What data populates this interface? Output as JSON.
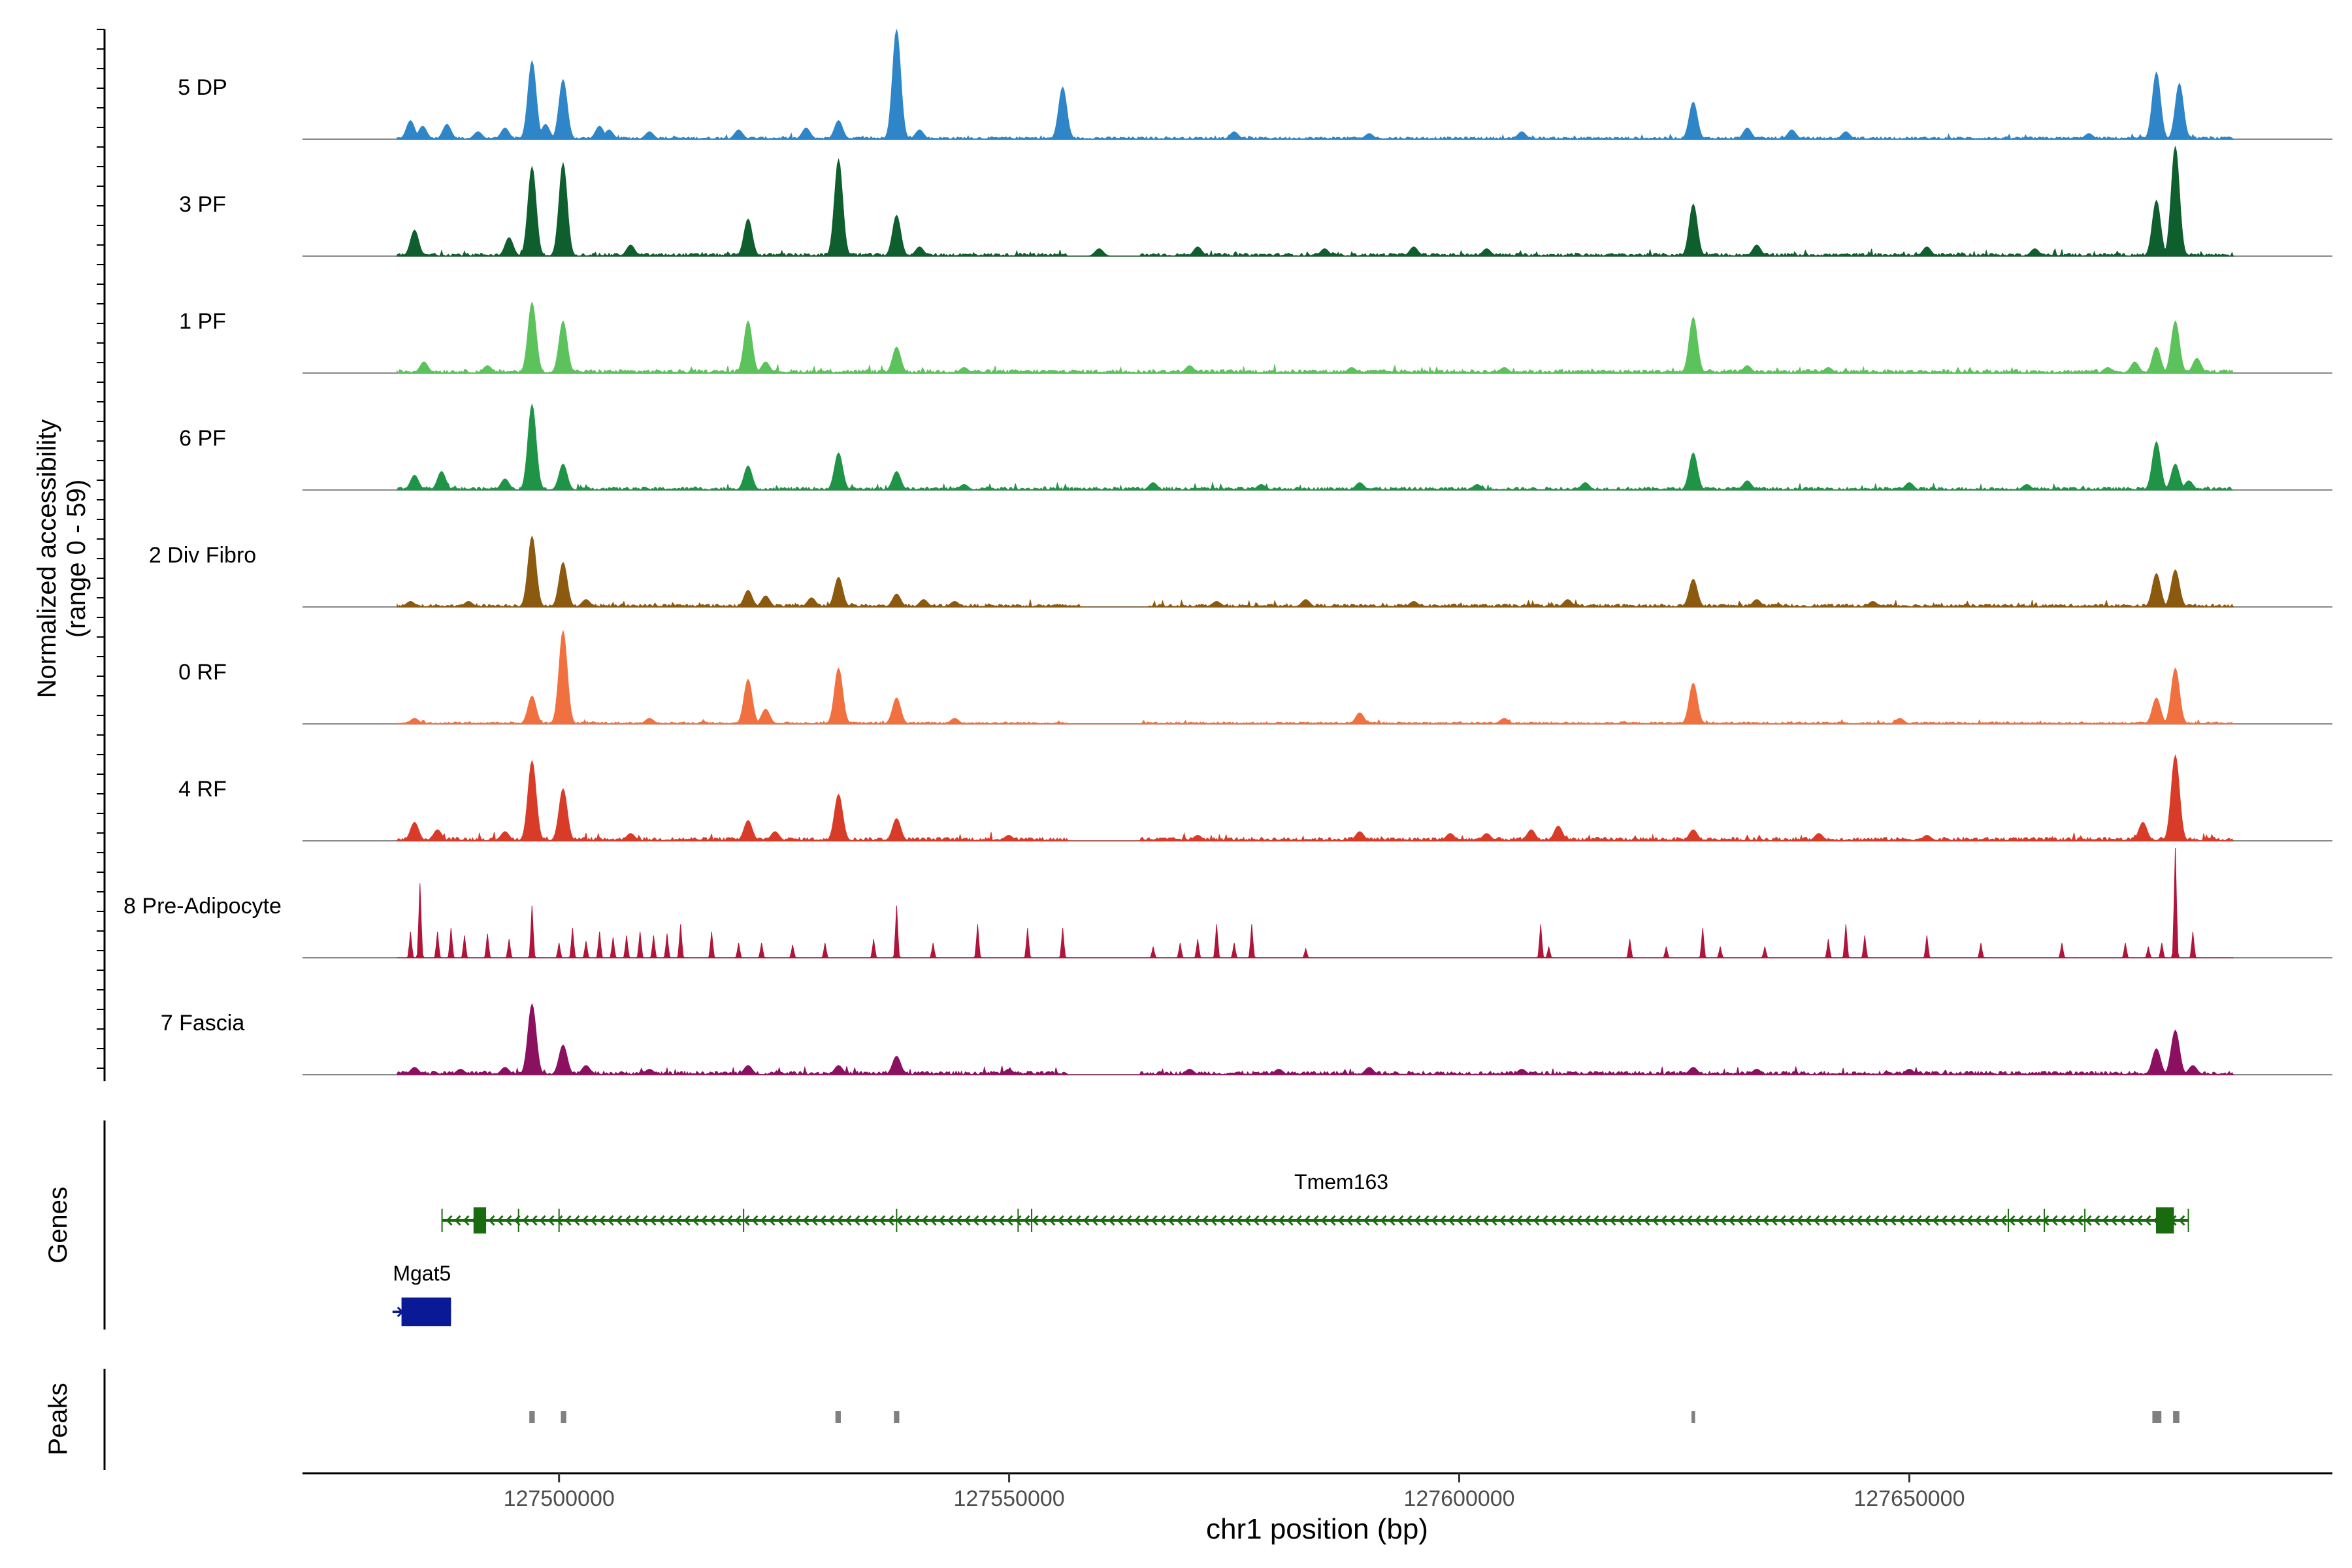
{
  "chart_data": {
    "type": "area",
    "title": "",
    "ylabel_line1": "Normalized accessibility",
    "ylabel_line2": "(range 0 - 59)",
    "y_range": [
      0,
      59
    ],
    "xlabel": "chr1 position (bp)",
    "xlim": [
      127471500,
      127697000
    ],
    "x_ticks": [
      127500000,
      127550000,
      127600000,
      127650000
    ],
    "x_tick_labels": [
      "127500000",
      "127550000",
      "127600000",
      "127650000"
    ],
    "track_start": 127482000,
    "track_end": 127686000,
    "genes_label": "Genes",
    "peaks_label": "Peaks",
    "tracks": [
      {
        "name": "5 DP",
        "color": "#2E86C8",
        "baseline": 0.8,
        "gaps": [],
        "peaks": [
          [
            127483500,
            10
          ],
          [
            127484800,
            7
          ],
          [
            127487500,
            8
          ],
          [
            127491000,
            4
          ],
          [
            127494000,
            6
          ],
          [
            127497000,
            42
          ],
          [
            127498500,
            8
          ],
          [
            127500500,
            32
          ],
          [
            127504500,
            7
          ],
          [
            127505500,
            5
          ],
          [
            127510000,
            4
          ],
          [
            127520000,
            5
          ],
          [
            127527500,
            6
          ],
          [
            127531000,
            10
          ],
          [
            127537500,
            59
          ],
          [
            127540000,
            5
          ],
          [
            127556000,
            28
          ],
          [
            127575000,
            4
          ],
          [
            127590000,
            3
          ],
          [
            127607000,
            4
          ],
          [
            127626000,
            20
          ],
          [
            127632000,
            6
          ],
          [
            127637000,
            5
          ],
          [
            127643000,
            4
          ],
          [
            127670000,
            3
          ],
          [
            127677500,
            36
          ],
          [
            127680000,
            30
          ]
        ]
      },
      {
        "name": "3 PF",
        "color": "#0F5E2E",
        "baseline": 1.0,
        "gaps": [
          [
            127556500,
            127564500
          ]
        ],
        "peaks": [
          [
            127484000,
            14
          ],
          [
            127494500,
            10
          ],
          [
            127497000,
            48
          ],
          [
            127500500,
            50
          ],
          [
            127508000,
            6
          ],
          [
            127521000,
            20
          ],
          [
            127531000,
            52
          ],
          [
            127537500,
            22
          ],
          [
            127540000,
            5
          ],
          [
            127560000,
            4
          ],
          [
            127571000,
            5
          ],
          [
            127585000,
            4
          ],
          [
            127595000,
            5
          ],
          [
            127603000,
            4
          ],
          [
            127626000,
            28
          ],
          [
            127633000,
            6
          ],
          [
            127652000,
            5
          ],
          [
            127664000,
            4
          ],
          [
            127677500,
            30
          ],
          [
            127679500,
            59
          ]
        ]
      },
      {
        "name": "1 PF",
        "color": "#5CC25C",
        "baseline": 1.2,
        "gaps": [],
        "peaks": [
          [
            127485000,
            6
          ],
          [
            127492000,
            4
          ],
          [
            127497000,
            38
          ],
          [
            127500500,
            28
          ],
          [
            127521000,
            28
          ],
          [
            127523000,
            6
          ],
          [
            127537500,
            14
          ],
          [
            127545000,
            3
          ],
          [
            127570000,
            4
          ],
          [
            127588000,
            3
          ],
          [
            127605000,
            3
          ],
          [
            127626000,
            30
          ],
          [
            127632000,
            4
          ],
          [
            127641000,
            3
          ],
          [
            127672000,
            3
          ],
          [
            127675000,
            6
          ],
          [
            127677500,
            14
          ],
          [
            127679500,
            28
          ],
          [
            127682000,
            8
          ]
        ]
      },
      {
        "name": "6 PF",
        "color": "#1F9447",
        "baseline": 1.0,
        "gaps": [],
        "peaks": [
          [
            127484000,
            8
          ],
          [
            127487000,
            10
          ],
          [
            127494000,
            6
          ],
          [
            127497000,
            46
          ],
          [
            127500500,
            14
          ],
          [
            127521000,
            13
          ],
          [
            127531000,
            20
          ],
          [
            127537500,
            10
          ],
          [
            127545000,
            3
          ],
          [
            127566000,
            4
          ],
          [
            127578000,
            3
          ],
          [
            127589000,
            4
          ],
          [
            127602000,
            3
          ],
          [
            127614000,
            4
          ],
          [
            127626000,
            20
          ],
          [
            127632000,
            5
          ],
          [
            127650000,
            4
          ],
          [
            127663000,
            3
          ],
          [
            127677500,
            26
          ],
          [
            127679500,
            14
          ],
          [
            127681000,
            5
          ]
        ]
      },
      {
        "name": "2 Div Fibro",
        "color": "#8B5A0E",
        "baseline": 1.0,
        "gaps": [
          [
            127558000,
            127565500
          ]
        ],
        "peaks": [
          [
            127483500,
            3
          ],
          [
            127490000,
            3
          ],
          [
            127497000,
            38
          ],
          [
            127500500,
            24
          ],
          [
            127503000,
            4
          ],
          [
            127521000,
            9
          ],
          [
            127523000,
            6
          ],
          [
            127528000,
            5
          ],
          [
            127531000,
            16
          ],
          [
            127537500,
            7
          ],
          [
            127540500,
            4
          ],
          [
            127544000,
            3
          ],
          [
            127573000,
            3
          ],
          [
            127583000,
            4
          ],
          [
            127595000,
            3
          ],
          [
            127612000,
            4
          ],
          [
            127626000,
            15
          ],
          [
            127633000,
            4
          ],
          [
            127646000,
            3
          ],
          [
            127677500,
            18
          ],
          [
            127679500,
            20
          ]
        ]
      },
      {
        "name": "0 RF",
        "color": "#F07040",
        "baseline": 0.7,
        "gaps": [
          [
            127556500,
            127564500
          ]
        ],
        "peaks": [
          [
            127484000,
            3
          ],
          [
            127497000,
            15
          ],
          [
            127500500,
            50
          ],
          [
            127510000,
            3
          ],
          [
            127521000,
            24
          ],
          [
            127523000,
            8
          ],
          [
            127531000,
            30
          ],
          [
            127537500,
            14
          ],
          [
            127544000,
            3
          ],
          [
            127589000,
            6
          ],
          [
            127605000,
            3
          ],
          [
            127626000,
            22
          ],
          [
            127649000,
            3
          ],
          [
            127677500,
            14
          ],
          [
            127679500,
            30
          ]
        ]
      },
      {
        "name": "4 RF",
        "color": "#D83C28",
        "baseline": 1.2,
        "gaps": [
          [
            127556500,
            127564500
          ]
        ],
        "peaks": [
          [
            127484000,
            10
          ],
          [
            127486500,
            6
          ],
          [
            127494000,
            5
          ],
          [
            127497000,
            43
          ],
          [
            127500500,
            28
          ],
          [
            127508000,
            4
          ],
          [
            127521000,
            11
          ],
          [
            127524000,
            5
          ],
          [
            127531000,
            25
          ],
          [
            127537500,
            12
          ],
          [
            127550000,
            3
          ],
          [
            127571000,
            3
          ],
          [
            127589000,
            5
          ],
          [
            127599000,
            4
          ],
          [
            127603000,
            4
          ],
          [
            127608000,
            6
          ],
          [
            127611000,
            8
          ],
          [
            127626000,
            6
          ],
          [
            127640000,
            4
          ],
          [
            127652000,
            3
          ],
          [
            127676000,
            10
          ],
          [
            127679500,
            46
          ]
        ]
      },
      {
        "name": "8 Pre-Adipocyte",
        "color": "#B0143A",
        "baseline": 0,
        "gaps": [],
        "peaks": [
          [
            127483500,
            14
          ],
          [
            127484500,
            40
          ],
          [
            127486500,
            14
          ],
          [
            127488000,
            16
          ],
          [
            127489500,
            12
          ],
          [
            127492000,
            13
          ],
          [
            127494500,
            10
          ],
          [
            127497000,
            28
          ],
          [
            127500000,
            8
          ],
          [
            127501500,
            16
          ],
          [
            127503000,
            9
          ],
          [
            127504500,
            14
          ],
          [
            127506000,
            11
          ],
          [
            127507500,
            12
          ],
          [
            127509000,
            14
          ],
          [
            127510500,
            12
          ],
          [
            127512000,
            13
          ],
          [
            127513500,
            18
          ],
          [
            127517000,
            14
          ],
          [
            127520000,
            8
          ],
          [
            127522500,
            8
          ],
          [
            127526000,
            7
          ],
          [
            127529500,
            8
          ],
          [
            127535000,
            10
          ],
          [
            127537500,
            28
          ],
          [
            127541500,
            8
          ],
          [
            127546500,
            18
          ],
          [
            127552000,
            16
          ],
          [
            127556000,
            16
          ],
          [
            127566000,
            6
          ],
          [
            127569000,
            8
          ],
          [
            127571000,
            10
          ],
          [
            127573000,
            18
          ],
          [
            127575000,
            8
          ],
          [
            127577000,
            18
          ],
          [
            127583000,
            5
          ],
          [
            127609000,
            18
          ],
          [
            127610000,
            6
          ],
          [
            127619000,
            10
          ],
          [
            127623000,
            6
          ],
          [
            127627000,
            16
          ],
          [
            127629000,
            6
          ],
          [
            127634000,
            6
          ],
          [
            127641000,
            10
          ],
          [
            127643000,
            18
          ],
          [
            127645000,
            12
          ],
          [
            127652000,
            12
          ],
          [
            127658000,
            8
          ],
          [
            127667000,
            8
          ],
          [
            127674000,
            8
          ],
          [
            127676500,
            6
          ],
          [
            127678000,
            8
          ],
          [
            127679500,
            59
          ],
          [
            127681500,
            14
          ]
        ]
      },
      {
        "name": "7 Fascia",
        "color": "#8B1060",
        "baseline": 1.2,
        "gaps": [
          [
            127556500,
            127564500
          ]
        ],
        "peaks": [
          [
            127484000,
            4
          ],
          [
            127489000,
            3
          ],
          [
            127494000,
            4
          ],
          [
            127497000,
            38
          ],
          [
            127500500,
            16
          ],
          [
            127503000,
            5
          ],
          [
            127510000,
            3
          ],
          [
            127521000,
            5
          ],
          [
            127531000,
            5
          ],
          [
            127537500,
            10
          ],
          [
            127550000,
            3
          ],
          [
            127570000,
            3
          ],
          [
            127580000,
            3
          ],
          [
            127590000,
            4
          ],
          [
            127607000,
            3
          ],
          [
            127626000,
            4
          ],
          [
            127633000,
            3
          ],
          [
            127650000,
            3
          ],
          [
            127677500,
            14
          ],
          [
            127679500,
            24
          ],
          [
            127681500,
            5
          ]
        ]
      }
    ],
    "genes": [
      {
        "name": "Tmem163",
        "strand": "-",
        "color": "#1A6B0F",
        "start": 127487000,
        "end": 127681000,
        "exons": [
          [
            127490500,
            127491900
          ],
          [
            127677400,
            127679400
          ]
        ],
        "ticks": [
          127487000,
          127491200,
          127495500,
          127500000,
          127520500,
          127537500,
          127551000,
          127552500,
          127661000,
          127665000,
          127669500,
          127681000
        ]
      },
      {
        "name": "Mgat5",
        "strand": "+",
        "color": "#0A1A96",
        "start": 127481500,
        "end": 127488000,
        "exons": [
          [
            127482500,
            127488000
          ]
        ],
        "ticks": []
      }
    ],
    "peak_regions": [
      {
        "start": 127496700,
        "end": 127497300
      },
      {
        "start": 127500200,
        "end": 127500800
      },
      {
        "start": 127530700,
        "end": 127531300
      },
      {
        "start": 127537200,
        "end": 127537800
      },
      {
        "start": 127625800,
        "end": 127626200
      },
      {
        "start": 127677000,
        "end": 127678000
      },
      {
        "start": 127679300,
        "end": 127680000
      }
    ]
  }
}
